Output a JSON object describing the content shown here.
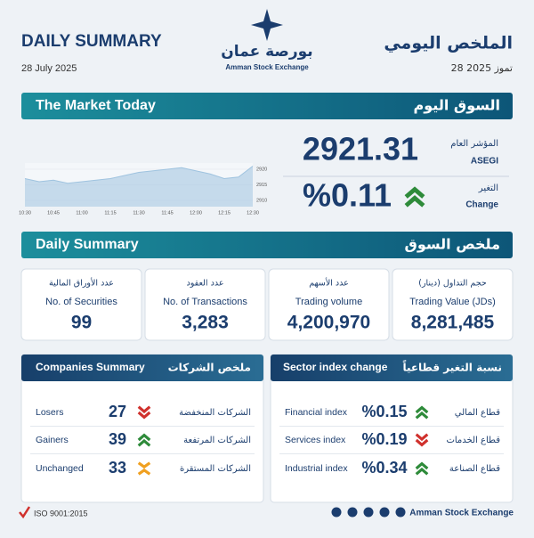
{
  "header": {
    "title_en": "DAILY SUMMARY",
    "date_en": "28 July 2025",
    "title_ar": "الملخص اليومي",
    "date_ar": "28 تموز 2025",
    "logo_ar": "بورصة عمان",
    "logo_en": "Amman Stock Exchange"
  },
  "market_today": {
    "title_en": "The Market Today",
    "title_ar": "السوق اليوم",
    "index_label_ar": "المؤشر العام",
    "index_label_en": "ASEGI",
    "index_value": "2921.31",
    "change_label_ar": "التغير",
    "change_label_en": "Change",
    "change_value": "%0.11"
  },
  "chart_data": {
    "type": "area",
    "color": "#9fc3df",
    "categories": [
      "10:30",
      null,
      "10:45",
      null,
      "11:00",
      null,
      "11:15",
      null,
      "11:30",
      null,
      "11:45",
      null,
      "12:00",
      null,
      "12:15",
      null,
      "12:30"
    ],
    "values": [
      2917,
      2916,
      2916.5,
      2915.5,
      2916,
      2916.5,
      2917,
      2918,
      2919,
      2919.5,
      2920,
      2920.5,
      2919.5,
      2918.5,
      2917,
      2917.5,
      2921
    ],
    "ylim": [
      2908,
      2922
    ],
    "yticks": [
      2910,
      2915,
      2920
    ]
  },
  "daily_summary": {
    "title_en": "Daily Summary",
    "title_ar": "ملخص السوق",
    "cards": [
      {
        "label_ar": "عدد الأوراق المالية",
        "label_en": "No. of Securities",
        "value": "99"
      },
      {
        "label_ar": "عدد العقود",
        "label_en": "No. of Transactions",
        "value": "3,283"
      },
      {
        "label_ar": "عدد الأسهم",
        "label_en": "Trading volume",
        "value": "4,200,970"
      },
      {
        "label_ar": "حجم التداول (دينار)",
        "label_en": "Trading Value (JDs)",
        "value": "8,281,485"
      }
    ]
  },
  "companies_summary": {
    "title_en": "Companies Summary",
    "title_ar": "ملخص الشركات",
    "rows": [
      {
        "label_en": "Losers",
        "value": "27",
        "label_ar": "الشركات المنخفضة"
      },
      {
        "label_en": "Gainers",
        "value": "39",
        "label_ar": "الشركات المرتفعة"
      },
      {
        "label_en": "Unchanged",
        "value": "33",
        "label_ar": "الشركات المستقرة"
      }
    ]
  },
  "sector_change": {
    "title_en": "Sector index change",
    "title_ar": "نسبة التغير قطاعياً",
    "rows": [
      {
        "label_en": "Financial index",
        "value": "%0.15",
        "label_ar": "قطاع المالي"
      },
      {
        "label_en": "Services index",
        "value": "%0.19",
        "label_ar": "قطاع الخدمات"
      },
      {
        "label_en": "Industrial index",
        "value": "%0.34",
        "label_ar": "قطاع الصناعة"
      }
    ]
  },
  "footer": {
    "iso": "ISO 9001:2015",
    "brand": "Amman Stock Exchange"
  }
}
